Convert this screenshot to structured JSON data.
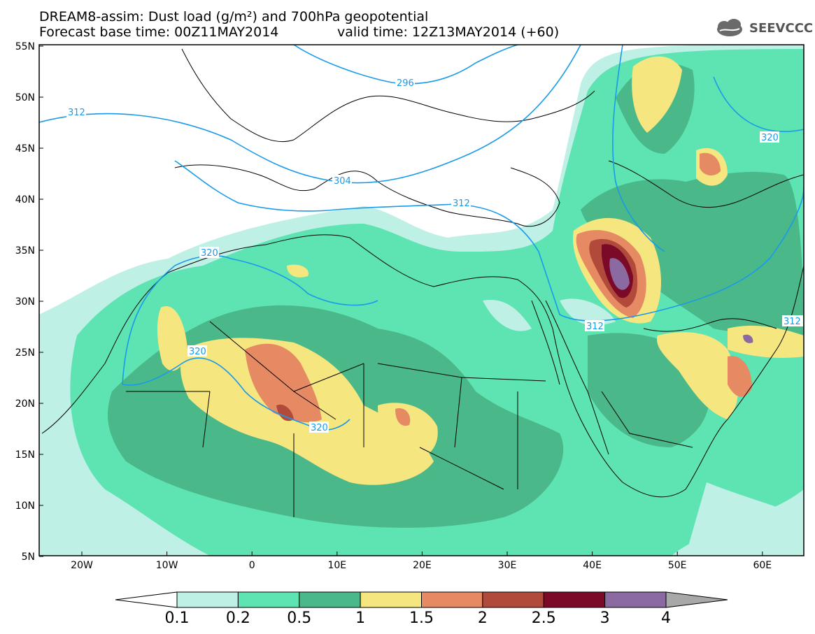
{
  "header": {
    "title_line1": "DREAM8-assim: Dust load (g/m²) and 700hPa geopotential",
    "title_line2a": "Forecast base time: 00Z11MAY2014",
    "title_line2b": "valid time: 12Z13MAY2014 (+60)"
  },
  "logo": {
    "text": "SEEVCCC",
    "icon": "cloud-icon"
  },
  "axes": {
    "lat_labels": [
      "55N",
      "50N",
      "45N",
      "40N",
      "35N",
      "30N",
      "25N",
      "20N",
      "15N",
      "10N",
      "5N"
    ],
    "lon_labels": [
      "20W",
      "10W",
      "0",
      "10E",
      "20E",
      "30E",
      "40E",
      "50E",
      "60E"
    ]
  },
  "contours": {
    "labels": [
      "296",
      "312",
      "304",
      "312",
      "320",
      "320",
      "320",
      "312",
      "312",
      "320"
    ]
  },
  "colorbar": {
    "ticks": [
      "0.1",
      "0.2",
      "0.5",
      "1",
      "1.5",
      "2",
      "2.5",
      "3",
      "4"
    ],
    "colors": [
      "#bff0e6",
      "#5ee3b2",
      "#4ab888",
      "#f5e680",
      "#e68a64",
      "#b24a3c",
      "#7a0a28",
      "#8a6aa0"
    ],
    "under_color": "#ffffff",
    "over_color": "#a8a8a8"
  }
}
